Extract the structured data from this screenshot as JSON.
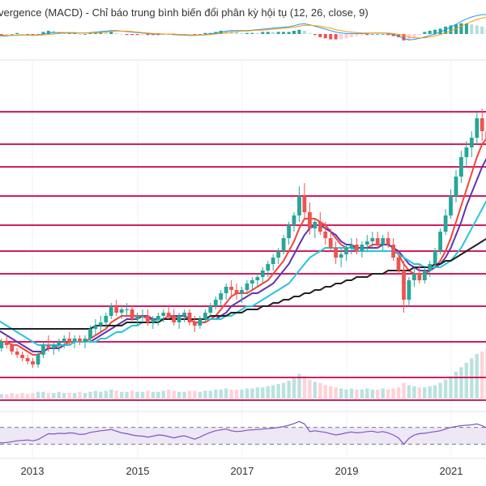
{
  "panels": {
    "macd_title": "vergence (MACD) - Chỉ báo trung bình biến đổi phân kỳ hội tụ (12, 26, close, 9)"
  },
  "colors": {
    "background": "#ffffff",
    "grid": "#eef0f4",
    "sr_line": "#d81b60",
    "candle_up": "#26a69a",
    "candle_down": "#ef5350",
    "ma_red": "#f44336",
    "ma_purple": "#5e35b1",
    "ma_cyan": "#26c6da",
    "ma_black": "#212121",
    "macd_line": "#2196f3",
    "signal_line": "#ff9800",
    "hist_up_strong": "#26a69a",
    "hist_up_weak": "#b2dfdb",
    "hist_down_strong": "#ef5350",
    "hist_down_weak": "#ffcdd2",
    "rsi_line": "#7e57c2",
    "rsi_band": "#ede7f6"
  },
  "chart_data": {
    "type": "candlestick",
    "timeframe": "monthly",
    "xlim": [
      "2012-01",
      "2021-12"
    ],
    "x_ticks": [
      "2013",
      "2015",
      "2017",
      "2019",
      "2021"
    ],
    "ylim_price": [
      0,
      100
    ],
    "horizontal_levels": [
      88,
      78,
      71,
      62,
      53,
      45,
      38,
      28,
      17,
      6,
      -1
    ],
    "dotted_level": 53,
    "candles_ohlc": [
      [
        22,
        23,
        18,
        19
      ],
      [
        19,
        21,
        16,
        17
      ],
      [
        17,
        18,
        13,
        14
      ],
      [
        14,
        16,
        12,
        15
      ],
      [
        15,
        18,
        14,
        17
      ],
      [
        17,
        19,
        15,
        16
      ],
      [
        16,
        17,
        13,
        14
      ],
      [
        14,
        15,
        12,
        13
      ],
      [
        13,
        14,
        11,
        12
      ],
      [
        12,
        13,
        10,
        11
      ],
      [
        11,
        12,
        9,
        10
      ],
      [
        10,
        14,
        9,
        13
      ],
      [
        13,
        17,
        12,
        16
      ],
      [
        16,
        19,
        14,
        15
      ],
      [
        15,
        17,
        13,
        16
      ],
      [
        16,
        18,
        14,
        17
      ],
      [
        17,
        19,
        15,
        18
      ],
      [
        18,
        20,
        16,
        17
      ],
      [
        17,
        19,
        15,
        18
      ],
      [
        18,
        19,
        16,
        17
      ],
      [
        17,
        19,
        15,
        18
      ],
      [
        18,
        22,
        17,
        21
      ],
      [
        21,
        24,
        19,
        22
      ],
      [
        22,
        25,
        20,
        23
      ],
      [
        23,
        26,
        21,
        25
      ],
      [
        25,
        29,
        24,
        28
      ],
      [
        28,
        30,
        25,
        26
      ],
      [
        26,
        28,
        24,
        27
      ],
      [
        27,
        29,
        25,
        27
      ],
      [
        27,
        28,
        23,
        24
      ],
      [
        24,
        26,
        22,
        25
      ],
      [
        25,
        27,
        23,
        25
      ],
      [
        25,
        27,
        22,
        23
      ],
      [
        23,
        25,
        21,
        24
      ],
      [
        24,
        26,
        22,
        25
      ],
      [
        25,
        27,
        23,
        26
      ],
      [
        26,
        28,
        24,
        25
      ],
      [
        25,
        27,
        22,
        23
      ],
      [
        23,
        26,
        21,
        25
      ],
      [
        25,
        27,
        23,
        26
      ],
      [
        26,
        27,
        22,
        23
      ],
      [
        23,
        25,
        20,
        22
      ],
      [
        22,
        25,
        21,
        24
      ],
      [
        24,
        27,
        23,
        26
      ],
      [
        26,
        29,
        25,
        28
      ],
      [
        28,
        31,
        27,
        30
      ],
      [
        30,
        33,
        28,
        32
      ],
      [
        32,
        35,
        30,
        34
      ],
      [
        34,
        36,
        31,
        33
      ],
      [
        33,
        35,
        30,
        32
      ],
      [
        32,
        34,
        29,
        33
      ],
      [
        33,
        36,
        32,
        35
      ],
      [
        35,
        37,
        33,
        36
      ],
      [
        36,
        38,
        34,
        37
      ],
      [
        37,
        40,
        35,
        39
      ],
      [
        39,
        42,
        37,
        41
      ],
      [
        41,
        44,
        39,
        43
      ],
      [
        43,
        46,
        41,
        45
      ],
      [
        45,
        50,
        44,
        49
      ],
      [
        49,
        54,
        47,
        53
      ],
      [
        53,
        57,
        51,
        56
      ],
      [
        56,
        65,
        54,
        62
      ],
      [
        62,
        66,
        55,
        57
      ],
      [
        57,
        60,
        50,
        52
      ],
      [
        52,
        55,
        49,
        54
      ],
      [
        54,
        57,
        50,
        51
      ],
      [
        51,
        54,
        47,
        49
      ],
      [
        49,
        52,
        45,
        46
      ],
      [
        46,
        48,
        41,
        43
      ],
      [
        43,
        46,
        40,
        44
      ],
      [
        44,
        47,
        42,
        46
      ],
      [
        46,
        49,
        44,
        47
      ],
      [
        47,
        49,
        44,
        45
      ],
      [
        45,
        48,
        43,
        47
      ],
      [
        47,
        50,
        45,
        48
      ],
      [
        48,
        51,
        46,
        49
      ],
      [
        49,
        51,
        46,
        47
      ],
      [
        47,
        50,
        45,
        49
      ],
      [
        49,
        51,
        46,
        47
      ],
      [
        47,
        49,
        42,
        43
      ],
      [
        43,
        45,
        38,
        39
      ],
      [
        39,
        42,
        26,
        30
      ],
      [
        30,
        37,
        28,
        36
      ],
      [
        36,
        40,
        34,
        38
      ],
      [
        38,
        41,
        35,
        36
      ],
      [
        36,
        40,
        35,
        39
      ],
      [
        39,
        42,
        37,
        41
      ],
      [
        41,
        46,
        40,
        45
      ],
      [
        45,
        52,
        44,
        51
      ],
      [
        51,
        58,
        50,
        56
      ],
      [
        56,
        64,
        55,
        62
      ],
      [
        62,
        70,
        60,
        68
      ],
      [
        68,
        76,
        66,
        74
      ],
      [
        74,
        79,
        71,
        77
      ],
      [
        77,
        82,
        74,
        80
      ],
      [
        80,
        88,
        78,
        86
      ],
      [
        86,
        89,
        79,
        82
      ],
      [
        82,
        85,
        77,
        79
      ],
      [
        79,
        83,
        76,
        81
      ],
      [
        81,
        84,
        76,
        78
      ]
    ],
    "series": [
      {
        "values": [
          26,
          23,
          20,
          18,
          17,
          17,
          16,
          16,
          15,
          14,
          13,
          13,
          14,
          15,
          15,
          16,
          16,
          17,
          17,
          17,
          17,
          18,
          19,
          20,
          21,
          23,
          24,
          25,
          25,
          25,
          25,
          25,
          24,
          24,
          24,
          24,
          25,
          25,
          24,
          24,
          24,
          23,
          23,
          23,
          24,
          25,
          27,
          29,
          31,
          32,
          32,
          32,
          33,
          34,
          35,
          36,
          38,
          40,
          42,
          45,
          48,
          52,
          55,
          55,
          55,
          54,
          53,
          51,
          49,
          47,
          46,
          46,
          46,
          46,
          46,
          47,
          47,
          47,
          47,
          46,
          44,
          41,
          39,
          38,
          38,
          38,
          39,
          40,
          42,
          45,
          49,
          54,
          59,
          64,
          69,
          74,
          78,
          80,
          80,
          80
        ]
      },
      {
        "values": [
          27,
          25,
          23,
          21,
          20,
          19,
          18,
          17,
          16,
          15,
          14,
          14,
          14,
          15,
          15,
          15,
          16,
          16,
          17,
          17,
          17,
          17,
          18,
          19,
          20,
          21,
          22,
          23,
          24,
          24,
          24,
          25,
          25,
          24,
          24,
          24,
          24,
          25,
          25,
          25,
          24,
          24,
          24,
          24,
          24,
          24,
          25,
          26,
          28,
          29,
          30,
          31,
          32,
          32,
          33,
          34,
          35,
          37,
          39,
          41,
          44,
          47,
          50,
          52,
          53,
          53,
          52,
          51,
          50,
          48,
          47,
          47,
          46,
          46,
          46,
          46,
          46,
          47,
          47,
          46,
          45,
          43,
          41,
          40,
          39,
          39,
          39,
          40,
          41,
          43,
          46,
          50,
          54,
          59,
          63,
          67,
          71,
          74,
          76,
          77
        ]
      },
      {
        "values": [
          30,
          28,
          26,
          24,
          23,
          22,
          21,
          20,
          19,
          18,
          17,
          16,
          16,
          16,
          16,
          16,
          16,
          16,
          17,
          17,
          17,
          17,
          17,
          18,
          18,
          19,
          20,
          20,
          21,
          22,
          22,
          23,
          23,
          23,
          24,
          24,
          24,
          24,
          24,
          24,
          24,
          24,
          24,
          24,
          24,
          24,
          24,
          25,
          25,
          26,
          27,
          28,
          28,
          29,
          30,
          31,
          32,
          33,
          34,
          35,
          37,
          39,
          41,
          43,
          44,
          45,
          46,
          46,
          46,
          46,
          46,
          46,
          45,
          45,
          45,
          45,
          45,
          45,
          45,
          45,
          44,
          43,
          42,
          41,
          41,
          40,
          40,
          40,
          40,
          41,
          42,
          44,
          46,
          49,
          52,
          55,
          58,
          61,
          64,
          66
        ]
      },
      {
        "values": [
          22,
          22,
          21,
          21,
          21,
          21,
          21,
          21,
          21,
          21,
          21,
          21,
          21,
          21,
          21,
          21,
          21,
          21,
          21,
          21,
          21,
          21,
          22,
          22,
          22,
          22,
          22,
          22,
          23,
          23,
          23,
          23,
          23,
          23,
          23,
          24,
          24,
          24,
          24,
          24,
          24,
          24,
          24,
          24,
          25,
          25,
          25,
          25,
          26,
          26,
          26,
          27,
          27,
          27,
          28,
          28,
          29,
          29,
          30,
          30,
          31,
          31,
          32,
          32,
          33,
          33,
          34,
          34,
          35,
          35,
          36,
          36,
          37,
          37,
          37,
          38,
          38,
          38,
          39,
          39,
          39,
          39,
          39,
          40,
          40,
          40,
          40,
          41,
          41,
          42,
          42,
          43,
          44,
          45,
          46,
          47,
          48,
          49,
          50,
          51
        ]
      }
    ],
    "volume": [
      5,
      4,
      4,
      5,
      4,
      4,
      5,
      4,
      5,
      4,
      5,
      6,
      6,
      5,
      5,
      6,
      5,
      5,
      5,
      6,
      5,
      6,
      7,
      6,
      7,
      8,
      7,
      6,
      6,
      7,
      6,
      6,
      7,
      6,
      6,
      7,
      8,
      7,
      6,
      6,
      7,
      7,
      6,
      7,
      7,
      8,
      8,
      9,
      8,
      8,
      8,
      9,
      9,
      10,
      10,
      11,
      12,
      13,
      14,
      16,
      18,
      22,
      20,
      17,
      15,
      14,
      12,
      11,
      10,
      9,
      8,
      9,
      8,
      8,
      9,
      8,
      8,
      9,
      8,
      9,
      10,
      14,
      12,
      11,
      10,
      10,
      11,
      12,
      14,
      17,
      20,
      24,
      28,
      32,
      36,
      40,
      42,
      45,
      44,
      41
    ],
    "macd": {
      "macd": [
        0.2,
        0.1,
        -0.1,
        -0.3,
        -0.4,
        -0.4,
        -0.3,
        -0.2,
        -0.2,
        -0.2,
        -0.3,
        -0.2,
        0,
        0.2,
        0.3,
        0.3,
        0.3,
        0.3,
        0.3,
        0.2,
        0.2,
        0.3,
        0.4,
        0.5,
        0.6,
        0.7,
        0.7,
        0.6,
        0.5,
        0.4,
        0.3,
        0.2,
        0.1,
        0,
        0,
        0,
        0,
        -0.1,
        -0.2,
        -0.2,
        -0.3,
        -0.3,
        -0.2,
        -0.1,
        0,
        0.2,
        0.4,
        0.6,
        0.7,
        0.7,
        0.7,
        0.7,
        0.8,
        0.9,
        1,
        1.1,
        1.2,
        1.3,
        1.4,
        1.5,
        1.7,
        2,
        2.1,
        1.9,
        1.6,
        1.3,
        1,
        0.7,
        0.4,
        0.2,
        0.1,
        0.1,
        0.1,
        0.1,
        0.1,
        0.2,
        0.2,
        0.2,
        0.1,
        -0.1,
        -0.4,
        -0.9,
        -1.2,
        -1.1,
        -0.9,
        -0.6,
        -0.3,
        0,
        0.4,
        0.9,
        1.4,
        2,
        2.6,
        3.1,
        3.5,
        3.8,
        4,
        4,
        3.8,
        3.5
      ],
      "signal": [
        0.3,
        0.2,
        0.1,
        -0.1,
        -0.2,
        -0.3,
        -0.3,
        -0.3,
        -0.2,
        -0.2,
        -0.2,
        -0.2,
        -0.2,
        -0.1,
        0,
        0.1,
        0.2,
        0.2,
        0.2,
        0.2,
        0.2,
        0.2,
        0.3,
        0.3,
        0.4,
        0.5,
        0.6,
        0.6,
        0.6,
        0.5,
        0.4,
        0.3,
        0.2,
        0.1,
        0.1,
        0,
        0,
        0,
        -0.1,
        -0.1,
        -0.2,
        -0.2,
        -0.2,
        -0.2,
        -0.1,
        0,
        0.1,
        0.3,
        0.4,
        0.5,
        0.6,
        0.6,
        0.7,
        0.8,
        0.8,
        0.9,
        1,
        1.1,
        1.2,
        1.3,
        1.4,
        1.6,
        1.8,
        1.8,
        1.7,
        1.6,
        1.4,
        1.2,
        0.9,
        0.7,
        0.5,
        0.4,
        0.3,
        0.2,
        0.2,
        0.2,
        0.2,
        0.2,
        0.2,
        0.1,
        -0.1,
        -0.3,
        -0.6,
        -0.8,
        -0.8,
        -0.8,
        -0.6,
        -0.4,
        -0.1,
        0.2,
        0.6,
        1.1,
        1.6,
        2.1,
        2.6,
        3,
        3.3,
        3.5,
        3.6,
        3.6
      ]
    },
    "rsi": {
      "ylim": [
        0,
        100
      ],
      "upper": 70,
      "lower": 30,
      "values": [
        45,
        42,
        38,
        35,
        33,
        34,
        36,
        38,
        39,
        40,
        38,
        41,
        48,
        55,
        54,
        56,
        55,
        57,
        56,
        53,
        54,
        58,
        60,
        62,
        63,
        65,
        61,
        57,
        55,
        52,
        50,
        49,
        47,
        49,
        52,
        51,
        48,
        45,
        48,
        50,
        46,
        42,
        47,
        53,
        58,
        62,
        64,
        66,
        62,
        60,
        61,
        63,
        64,
        65,
        66,
        67,
        68,
        70,
        72,
        75,
        79,
        84,
        78,
        60,
        62,
        60,
        58,
        55,
        52,
        54,
        57,
        59,
        57,
        58,
        60,
        61,
        58,
        60,
        57,
        52,
        45,
        30,
        44,
        52,
        55,
        56,
        58,
        60,
        62,
        66,
        70,
        72,
        74,
        75,
        76,
        78,
        74,
        68,
        70,
        67
      ]
    }
  }
}
